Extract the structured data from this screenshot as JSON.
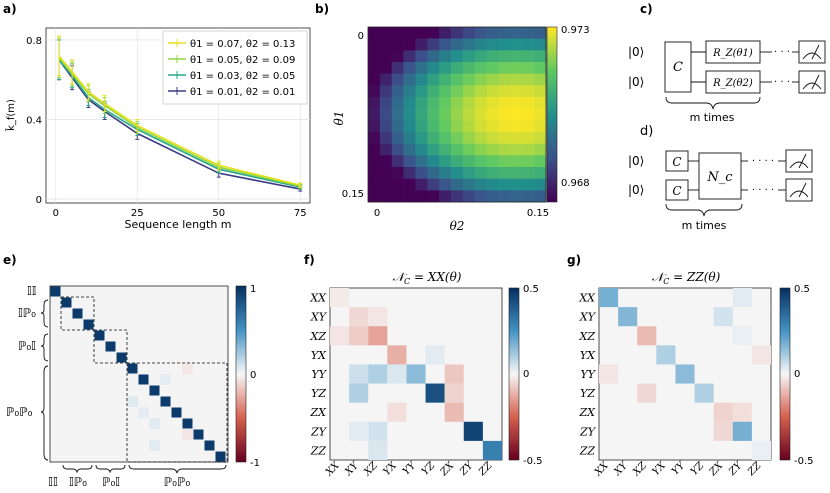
{
  "panel_labels": [
    "a)",
    "b)",
    "c)",
    "d)",
    "e)",
    "f)",
    "g)"
  ],
  "chart_data": [
    {
      "id": "a",
      "type": "line",
      "xlabel": "Sequence length m",
      "ylabel": "k̂_f(m)",
      "xlim": [
        -3,
        78
      ],
      "ylim": [
        -0.02,
        0.86
      ],
      "xticks": [
        0,
        25,
        50,
        75
      ],
      "yticks": [
        0,
        0.4,
        0.8
      ],
      "ytick_labels": [
        "0",
        "0.4",
        "0.8"
      ],
      "x": [
        1,
        5,
        10,
        15,
        25,
        50,
        75
      ],
      "legend_position": "top-right",
      "grid": true,
      "series": [
        {
          "name": "θ1 = 0.07, θ2 = 0.13",
          "color": "#e8e11f",
          "values": [
            0.72,
            0.64,
            0.54,
            0.48,
            0.37,
            0.17,
            0.07
          ],
          "err": [
            0.1,
            0.06,
            0.04,
            0.04,
            0.03,
            0.02,
            0.01
          ]
        },
        {
          "name": "θ1 = 0.05, θ2 = 0.09",
          "color": "#8fd744",
          "values": [
            0.71,
            0.63,
            0.53,
            0.47,
            0.36,
            0.16,
            0.065
          ],
          "err": [
            0.1,
            0.06,
            0.04,
            0.04,
            0.03,
            0.02,
            0.01
          ]
        },
        {
          "name": "θ1 = 0.03, θ2 = 0.05",
          "color": "#26a98b",
          "values": [
            0.7,
            0.62,
            0.51,
            0.45,
            0.35,
            0.15,
            0.06
          ],
          "err": [
            0.1,
            0.06,
            0.04,
            0.04,
            0.03,
            0.02,
            0.01
          ]
        },
        {
          "name": "θ1 = 0.01, θ2 = 0.01",
          "color": "#3b3a84",
          "values": [
            0.7,
            0.61,
            0.5,
            0.44,
            0.33,
            0.13,
            0.05
          ],
          "err": [
            0.1,
            0.06,
            0.04,
            0.04,
            0.03,
            0.02,
            0.01
          ]
        }
      ]
    },
    {
      "id": "b",
      "type": "heatmap",
      "xlabel": "θ2",
      "ylabel": "θ1",
      "x_tick_labels": [
        "0",
        "0.15"
      ],
      "y_tick_labels": [
        "0",
        "0.15"
      ],
      "rows": 15,
      "cols": 15,
      "colorscale": "viridis",
      "vmin": 0.968,
      "vmax": 0.973,
      "colorbar_ticks": [
        "0.973",
        "0.968"
      ],
      "peak": {
        "row": 7,
        "col": 12
      }
    },
    {
      "id": "e",
      "type": "heatmap",
      "size": 16,
      "colorscale": "RdBu",
      "vmin": -1,
      "vmax": 1,
      "colorbar_ticks": [
        "1",
        "0",
        "-1"
      ],
      "group_labels": [
        "𝕀𝕀",
        "𝕀ℙ₀",
        "ℙ₀𝕀",
        "ℙ₀ℙ₀"
      ],
      "diagonal": [
        0.95,
        0.95,
        0.95,
        0.95,
        0.95,
        0.95,
        0.95,
        0.95,
        0.95,
        0.95,
        0.95,
        0.95,
        0.95,
        0.95,
        0.95,
        0.95
      ],
      "offdiag": [
        [
          10,
          7,
          0.07
        ],
        [
          11,
          8,
          0.05
        ],
        [
          13,
          12,
          -0.06
        ],
        [
          12,
          9,
          0.06
        ],
        [
          14,
          9,
          0.06
        ],
        [
          8,
          10,
          0.05
        ],
        [
          7,
          12,
          -0.05
        ]
      ]
    },
    {
      "id": "f",
      "type": "heatmap",
      "title": "N_C = XX(θ)",
      "labels": [
        "XX",
        "XY",
        "XZ",
        "YX",
        "YY",
        "YZ",
        "ZX",
        "ZY",
        "ZZ"
      ],
      "colorscale": "RdBu",
      "vmin": -0.5,
      "vmax": 0.5,
      "colorbar_ticks": [
        "0.5",
        "0",
        "-0.5"
      ],
      "cells": [
        [
          0,
          0,
          -0.02
        ],
        [
          1,
          1,
          -0.05
        ],
        [
          1,
          2,
          -0.03
        ],
        [
          2,
          1,
          -0.07
        ],
        [
          2,
          2,
          -0.14
        ],
        [
          2,
          0,
          -0.03
        ],
        [
          3,
          3,
          -0.12
        ],
        [
          3,
          5,
          0.03
        ],
        [
          4,
          1,
          0.06
        ],
        [
          4,
          2,
          0.1
        ],
        [
          4,
          4,
          0.15
        ],
        [
          4,
          6,
          -0.08
        ],
        [
          4,
          3,
          0.04
        ],
        [
          5,
          1,
          0.1
        ],
        [
          5,
          5,
          0.42
        ],
        [
          5,
          6,
          -0.06
        ],
        [
          6,
          3,
          -0.04
        ],
        [
          6,
          6,
          -0.1
        ],
        [
          7,
          2,
          0.05
        ],
        [
          7,
          7,
          0.45
        ],
        [
          7,
          1,
          0.03
        ],
        [
          8,
          8,
          0.3
        ],
        [
          8,
          2,
          0.04
        ]
      ]
    },
    {
      "id": "g",
      "type": "heatmap",
      "title": "N_C = ZZ(θ)",
      "labels": [
        "XX",
        "XY",
        "XZ",
        "YX",
        "YY",
        "YZ",
        "ZX",
        "ZY",
        "ZZ"
      ],
      "colorscale": "RdBu",
      "vmin": -0.5,
      "vmax": 0.5,
      "colorbar_ticks": [
        "0.5",
        "0",
        "-0.5"
      ],
      "cells": [
        [
          0,
          0,
          0.18
        ],
        [
          0,
          7,
          0.03
        ],
        [
          1,
          1,
          0.16
        ],
        [
          1,
          6,
          0.05
        ],
        [
          2,
          2,
          -0.1
        ],
        [
          2,
          7,
          0.02
        ],
        [
          3,
          3,
          0.1
        ],
        [
          3,
          8,
          -0.03
        ],
        [
          4,
          4,
          0.15
        ],
        [
          4,
          0,
          -0.03
        ],
        [
          5,
          5,
          0.1
        ],
        [
          5,
          2,
          -0.05
        ],
        [
          6,
          6,
          -0.06
        ],
        [
          6,
          7,
          -0.04
        ],
        [
          7,
          6,
          -0.05
        ],
        [
          7,
          7,
          0.18
        ],
        [
          8,
          8,
          0.02
        ]
      ]
    }
  ],
  "circuits": {
    "c": {
      "ket": "|0⟩",
      "clifford": "C",
      "gates": [
        "R_Z(θ1)",
        "R_Z(θ2)"
      ],
      "brace_label": "m times"
    },
    "d": {
      "ket": "|0⟩",
      "clifford": "C",
      "channel": "N_c",
      "brace_label": "m times"
    }
  }
}
